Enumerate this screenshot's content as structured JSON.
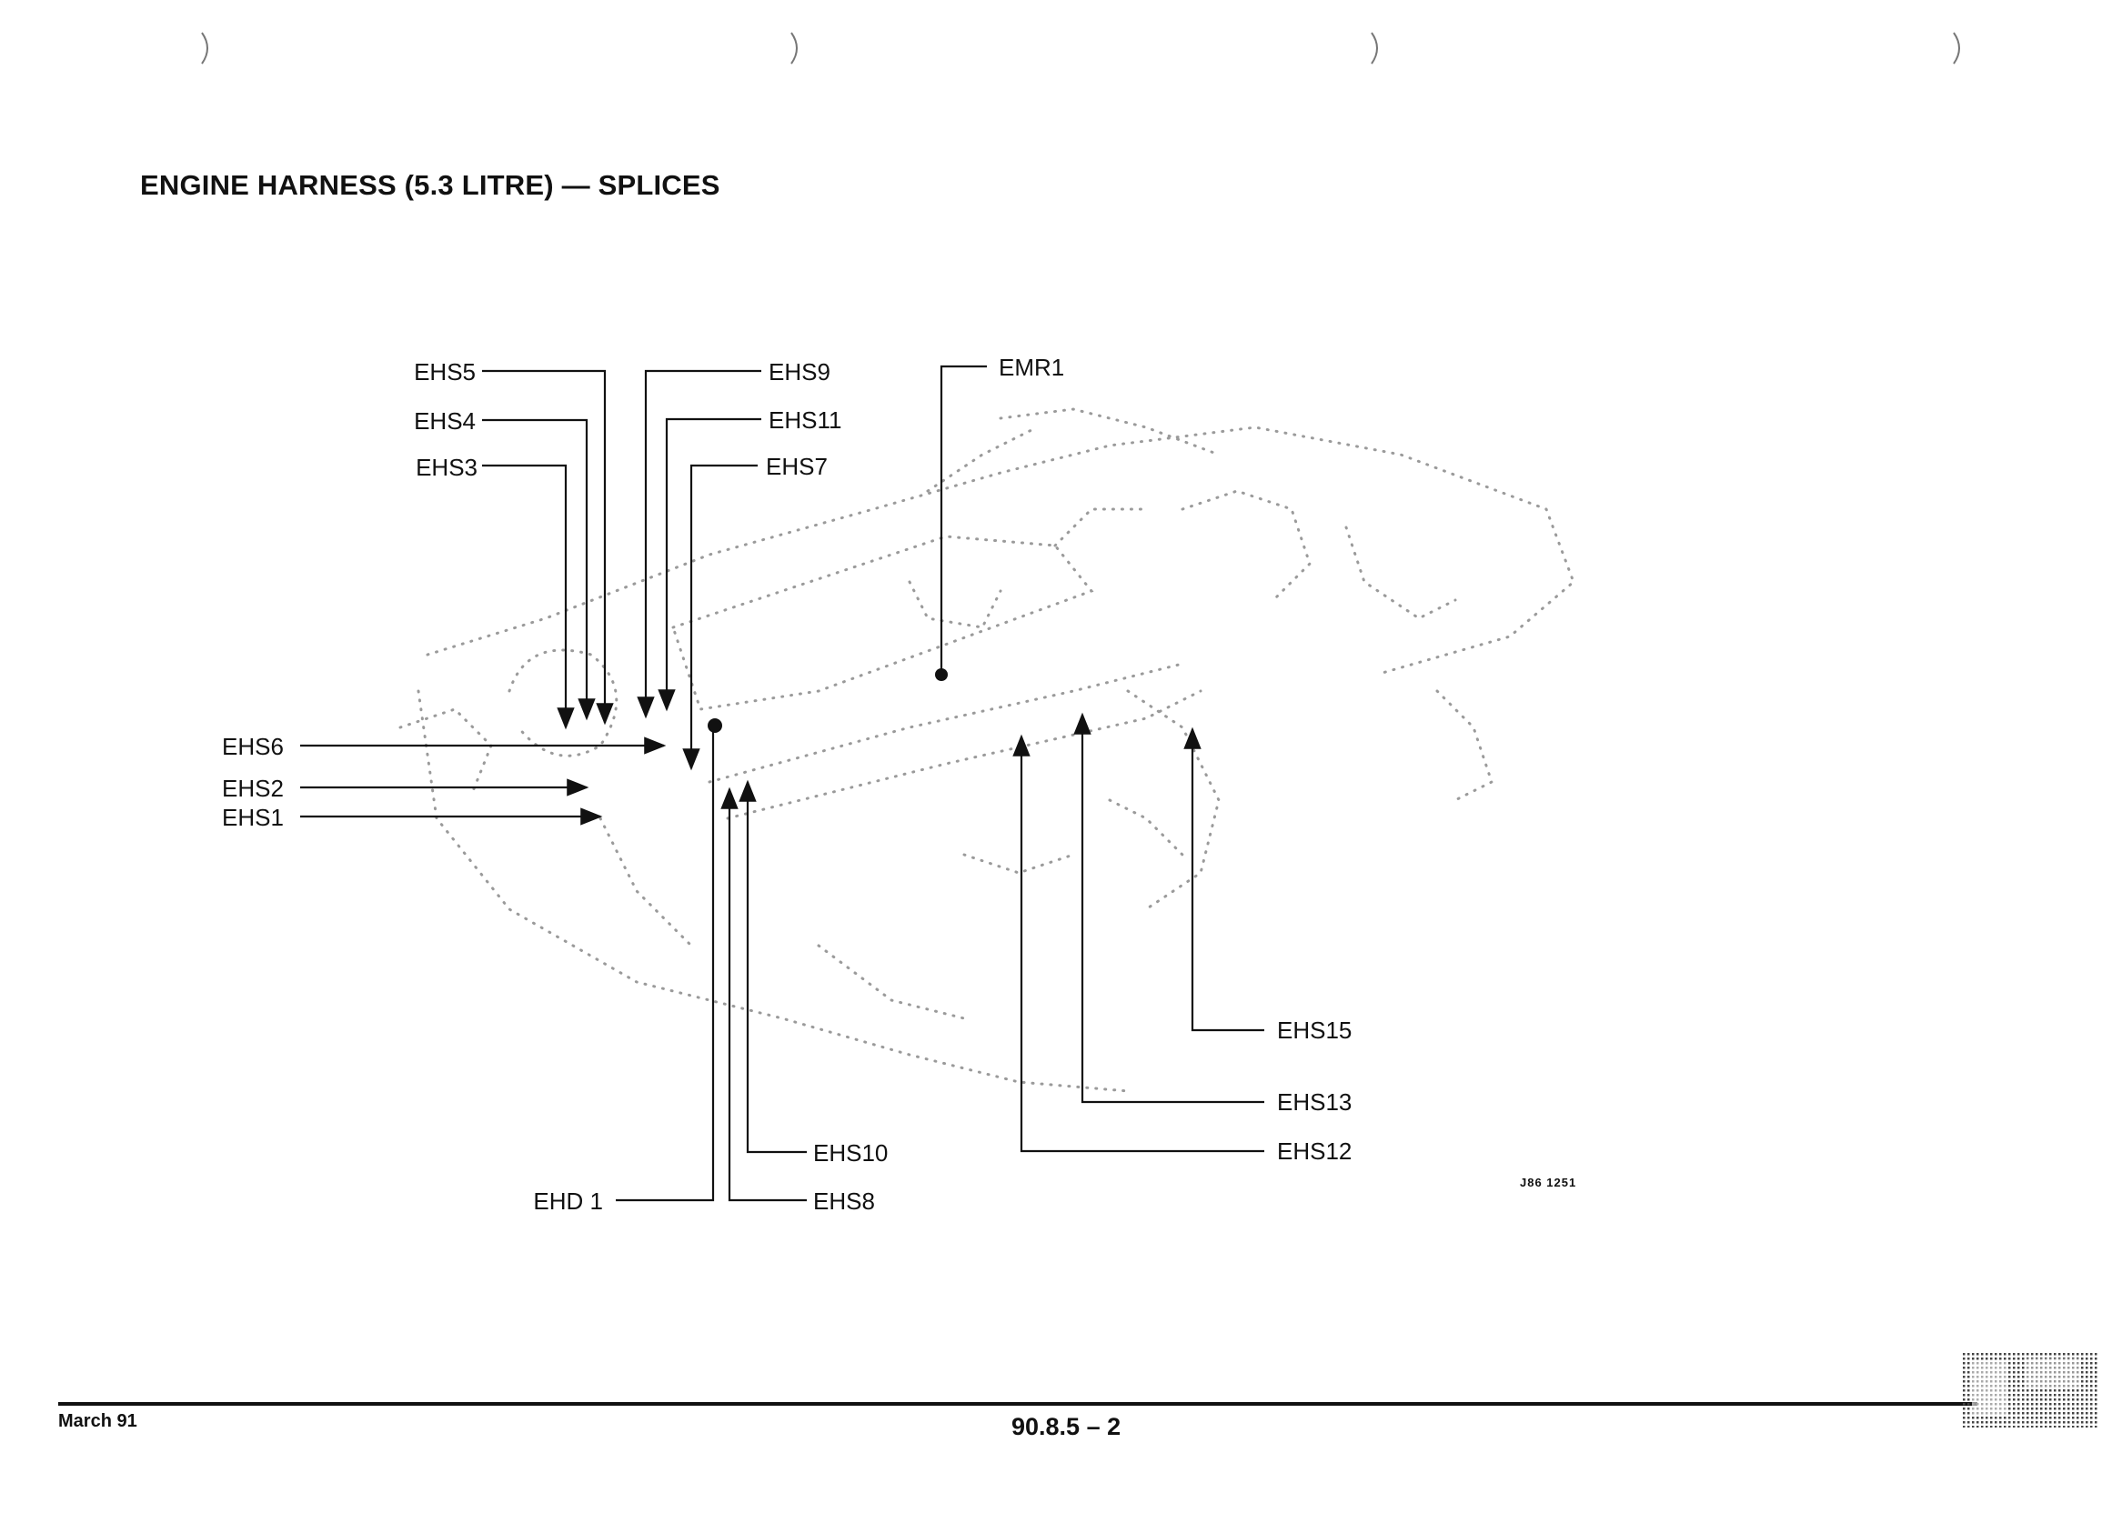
{
  "title": "ENGINE HARNESS (5.3 LITRE) — SPLICES",
  "reference_code": "J86 1251",
  "footer": {
    "date": "March 91",
    "page_number": "90.8.5 – 2"
  },
  "labels": {
    "EHS5": "EHS5",
    "EHS4": "EHS4",
    "EHS3": "EHS3",
    "EHS9": "EHS9",
    "EHS11": "EHS11",
    "EHS7": "EHS7",
    "EMR1": "EMR1",
    "EHS6": "EHS6",
    "EHS2": "EHS2",
    "EHS1": "EHS1",
    "EHS15": "EHS15",
    "EHS13": "EHS13",
    "EHS12": "EHS12",
    "EHS10": "EHS10",
    "EHD1": "EHD 1",
    "EHS8": "EHS8"
  },
  "icons": {
    "punch_hole": "binder-hole-mark-icon",
    "engine": "engine-outline-dotted-icon",
    "corner": "scan-halftone-mark-icon"
  },
  "colors": {
    "ink": "#111111",
    "dotted_outline": "#9a9a9a"
  }
}
